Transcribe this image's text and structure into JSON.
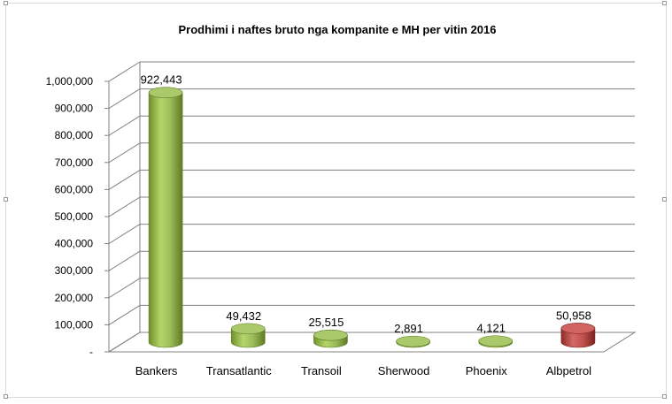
{
  "chart_data": {
    "type": "bar",
    "title": "Prodhimi i naftes bruto nga kompanite e MH per vitin 2016",
    "categories": [
      "Bankers",
      "Transatlantic",
      "Transoil",
      "Sherwood",
      "Phoenix",
      "Albpetrol"
    ],
    "values": [
      922443,
      49432,
      25515,
      2891,
      4121,
      50958
    ],
    "value_labels": [
      "922,443",
      "49,432",
      "25,515",
      "2,891",
      "4,121",
      "50,958"
    ],
    "y_ticks": [
      "-",
      "100,000",
      "200,000",
      "300,000",
      "400,000",
      "500,000",
      "600,000",
      "700,000",
      "800,000",
      "900,000",
      "1,000,000"
    ],
    "ylim": [
      0,
      1000000
    ],
    "xlabel": "",
    "ylabel": "",
    "grid": true,
    "legend": "none",
    "bar_style": "3d-cylinder",
    "colors": [
      "#9bbb59",
      "#9bbb59",
      "#9bbb59",
      "#9bbb59",
      "#9bbb59",
      "#c0504d"
    ]
  }
}
